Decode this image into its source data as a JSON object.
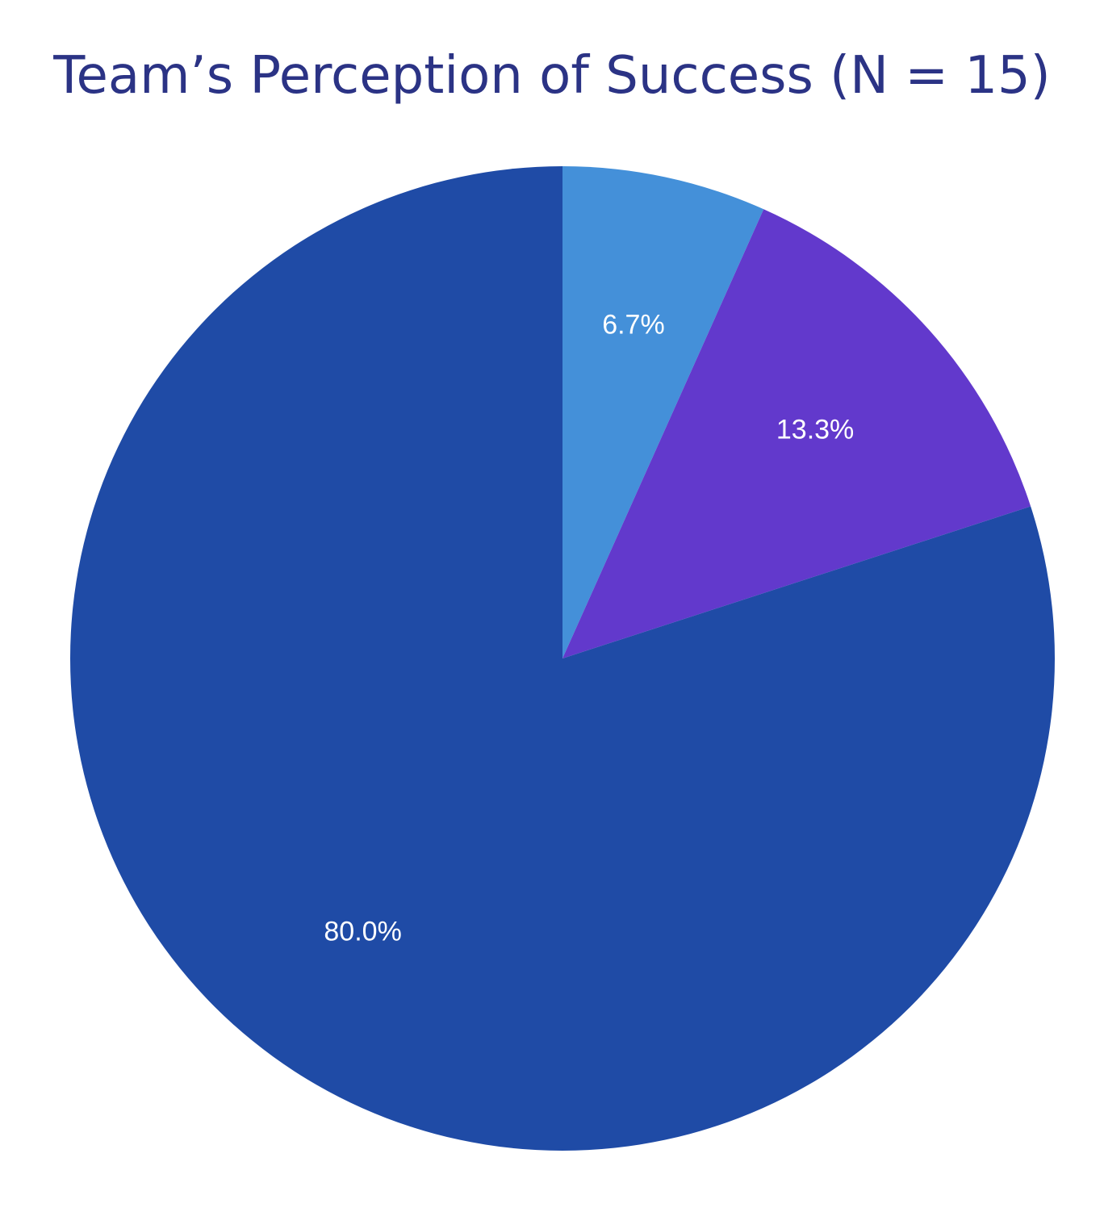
{
  "chart_data": {
    "type": "pie",
    "title": "Team’s Perception of Success (N = 15)",
    "slices": [
      {
        "value": 6.7,
        "label": "6.7%",
        "color": "#4490d9"
      },
      {
        "value": 13.3,
        "label": "13.3%",
        "color": "#6239cc"
      },
      {
        "value": 80.0,
        "label": "80.0%",
        "color": "#1f4ba6"
      }
    ],
    "start_angle": "12 o'clock",
    "direction": "clockwise"
  }
}
